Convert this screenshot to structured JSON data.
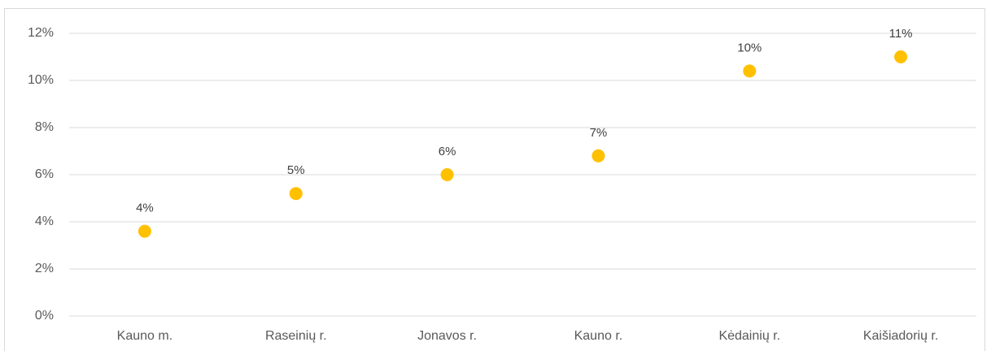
{
  "chart_data": {
    "type": "scatter",
    "categories": [
      "Kauno m.",
      "Raseinių r.",
      "Jonavos r.",
      "Kauno r.",
      "Kėdainių r.",
      "Kaišiadorių r."
    ],
    "values": [
      3.6,
      5.2,
      6.0,
      6.8,
      10.4,
      11.0
    ],
    "value_labels": [
      "4%",
      "5%",
      "6%",
      "7%",
      "10%",
      "11%"
    ],
    "color": "#ffc000",
    "ylim": [
      0,
      12
    ],
    "yticks": [
      {
        "value": 0,
        "label": "0%"
      },
      {
        "value": 2,
        "label": "2%"
      },
      {
        "value": 4,
        "label": "4%"
      },
      {
        "value": 6,
        "label": "6%"
      },
      {
        "value": 8,
        "label": "8%"
      },
      {
        "value": 10,
        "label": "10%"
      },
      {
        "value": 12,
        "label": "12%"
      }
    ],
    "grid": true
  }
}
